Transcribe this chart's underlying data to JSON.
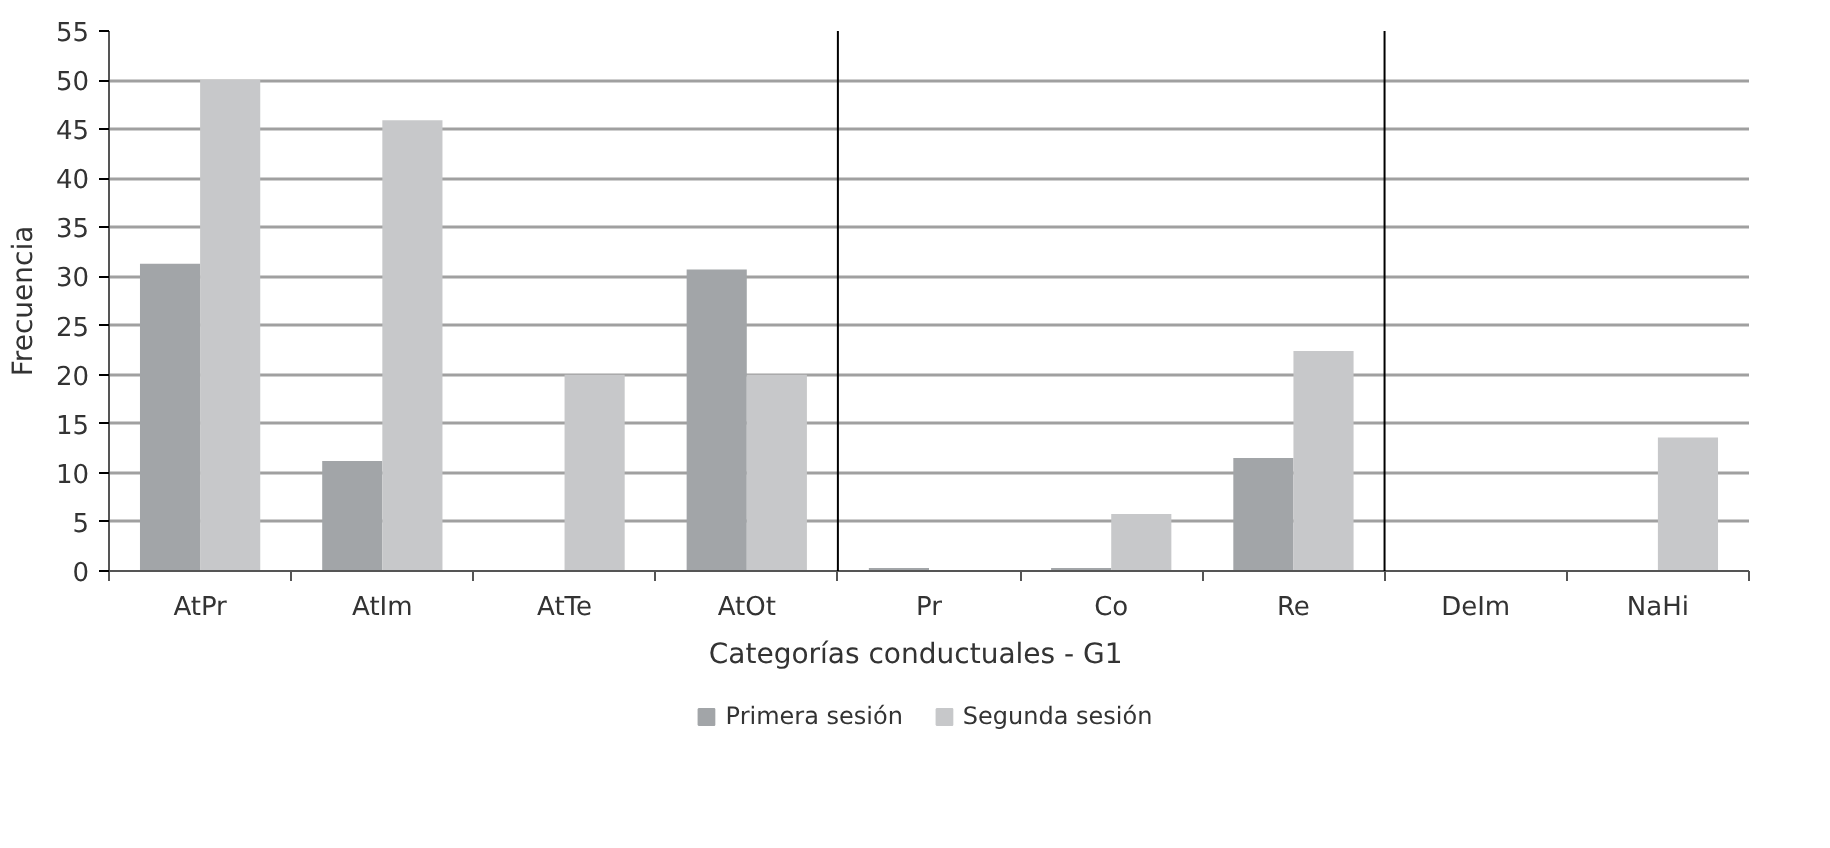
{
  "chart_data": {
    "type": "bar",
    "xlabel": "Categorías conductuales   -  G1",
    "ylabel": "Frecuencia",
    "categories": [
      "AtPr",
      "AtIm",
      "AtTe",
      "AtOt",
      "Pr",
      "Co",
      "Re",
      "DeIm",
      "NaHi"
    ],
    "series": [
      {
        "name": "Primera sesión",
        "color": "#a2a5a8",
        "values": [
          31.3,
          11.2,
          0,
          30.7,
          0.3,
          0.3,
          11.5,
          0,
          0
        ]
      },
      {
        "name": "Segunda sesión",
        "color": "#c7c8ca",
        "values": [
          50,
          45.9,
          20,
          20,
          0,
          5.8,
          22.4,
          0,
          13.6
        ]
      }
    ],
    "ylim": [
      0,
      55
    ],
    "yticks": [
      0,
      5,
      10,
      15,
      20,
      25,
      30,
      35,
      40,
      45,
      50,
      55
    ],
    "grid": "y",
    "legend": "bottom"
  }
}
